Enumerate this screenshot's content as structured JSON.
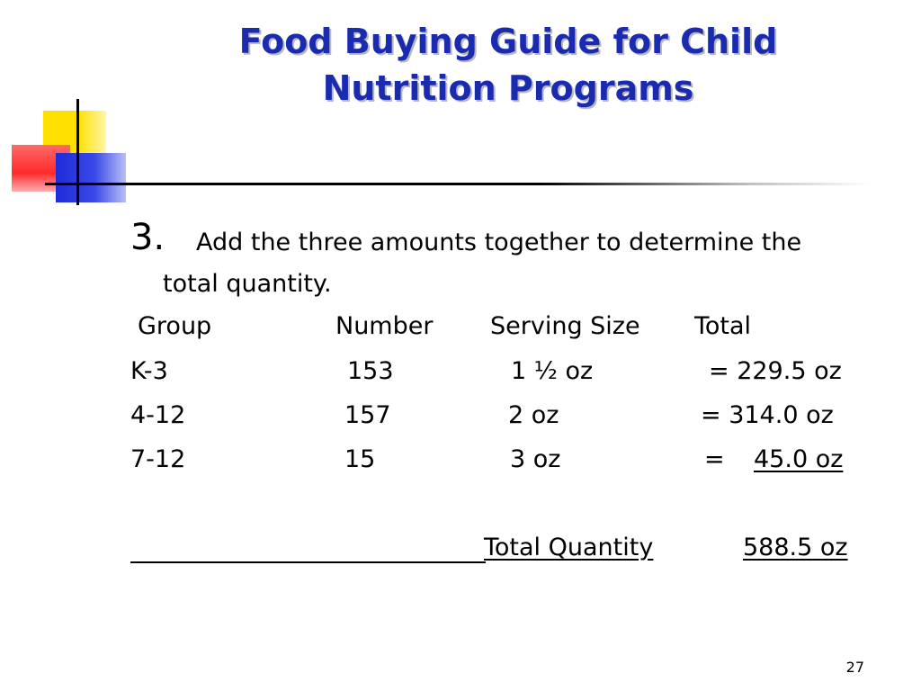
{
  "slide": {
    "title_line1": "Food Buying Guide for Child",
    "title_line2": "Nutrition Programs",
    "step_number": "3.",
    "step_text_line1": "Add the three amounts together to determine the",
    "step_text_line2": "total quantity.",
    "table": {
      "headers": [
        "Group",
        "Number",
        "Serving Size",
        "Total"
      ],
      "rows": [
        [
          "K-3",
          "153",
          "1 ½ oz",
          "= 229.5 oz"
        ],
        [
          "4-12",
          "157",
          "2 oz",
          "= 314.0 oz"
        ],
        [
          "7-12",
          "15",
          "3 oz",
          "=",
          "45.0 oz"
        ]
      ]
    },
    "total_label": "Total Quantity",
    "total_value": "588.5 oz",
    "page_number": "27"
  },
  "colors": {
    "title": "#1a2bb0",
    "accent_yellow": "#ffe000",
    "accent_red": "#ff2a2a",
    "accent_blue": "#1e2bd8"
  }
}
